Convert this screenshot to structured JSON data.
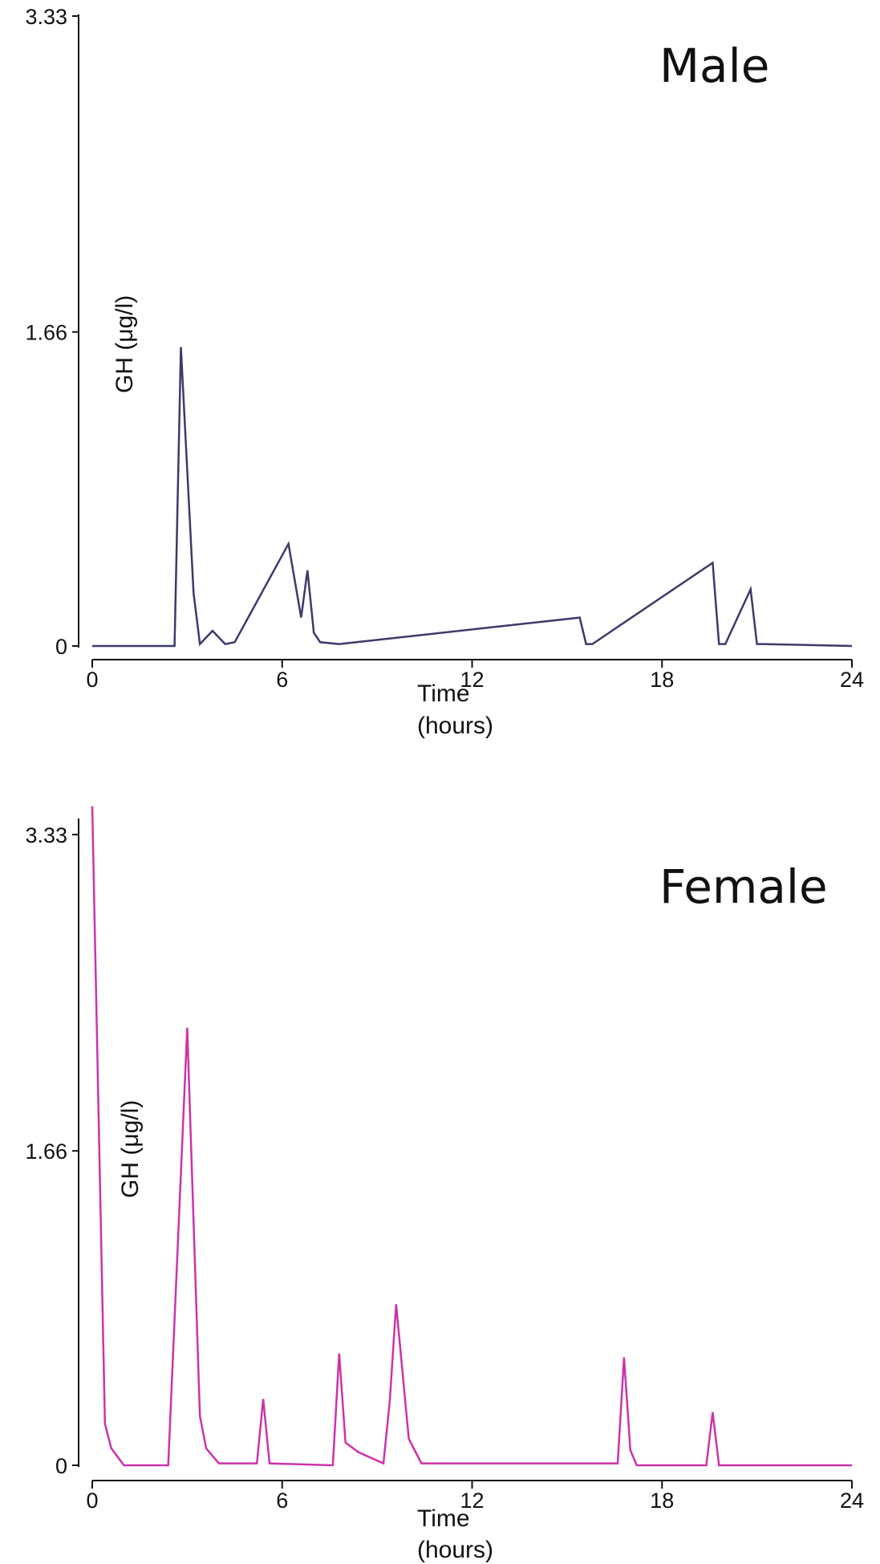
{
  "chart_data": [
    {
      "type": "line",
      "title": "Male",
      "xlabel_line1": "Time",
      "xlabel_line2": "(hours)",
      "ylabel": "GH (μg/l)",
      "xlim": [
        0,
        24
      ],
      "ylim": [
        0,
        3.33
      ],
      "xticks": [
        "0",
        "6",
        "12",
        "18",
        "24"
      ],
      "yticks": [
        "0",
        "1.66",
        "3.33"
      ],
      "grid": false,
      "series": [
        {
          "color": "#3b3a6b",
          "x": [
            0,
            2.6,
            2.8,
            3.2,
            3.4,
            3.8,
            4.2,
            4.5,
            6.2,
            6.6,
            6.8,
            7.0,
            7.2,
            7.8,
            15.4,
            15.6,
            15.8,
            19.6,
            19.8,
            20.0,
            20.8,
            21.0,
            21.2,
            24
          ],
          "y": [
            0,
            0,
            1.58,
            0.28,
            0.01,
            0.08,
            0.01,
            0.02,
            0.54,
            0.15,
            0.4,
            0.07,
            0.02,
            0.01,
            0.15,
            0.01,
            0.01,
            0.44,
            0.01,
            0.01,
            0.3,
            0.01,
            0.01,
            0
          ]
        }
      ]
    },
    {
      "type": "line",
      "title": "Female",
      "xlabel_line1": "Time",
      "xlabel_line2": "(hours)",
      "ylabel": "GH (μg/l)",
      "xlim": [
        0,
        24
      ],
      "ylim": [
        0,
        3.33
      ],
      "xticks": [
        "0",
        "6",
        "12",
        "18",
        "24"
      ],
      "yticks": [
        "0",
        "1.66",
        "3.33"
      ],
      "grid": false,
      "series": [
        {
          "color": "#cc33aa",
          "x": [
            0,
            0.4,
            0.6,
            1.0,
            2.4,
            3.0,
            3.4,
            3.6,
            4.0,
            5.2,
            5.4,
            5.6,
            7.6,
            7.8,
            8.0,
            8.4,
            9.2,
            9.4,
            9.6,
            10.0,
            10.4,
            16.6,
            16.8,
            17.0,
            17.2,
            19.4,
            19.6,
            19.8,
            24
          ],
          "y": [
            3.48,
            0.22,
            0.09,
            0.0,
            0.0,
            2.31,
            0.26,
            0.09,
            0.01,
            0.01,
            0.35,
            0.01,
            0.0,
            0.59,
            0.12,
            0.07,
            0.01,
            0.34,
            0.85,
            0.14,
            0.01,
            0.01,
            0.57,
            0.08,
            0.0,
            0.0,
            0.28,
            0.0,
            0.0
          ]
        }
      ]
    }
  ]
}
